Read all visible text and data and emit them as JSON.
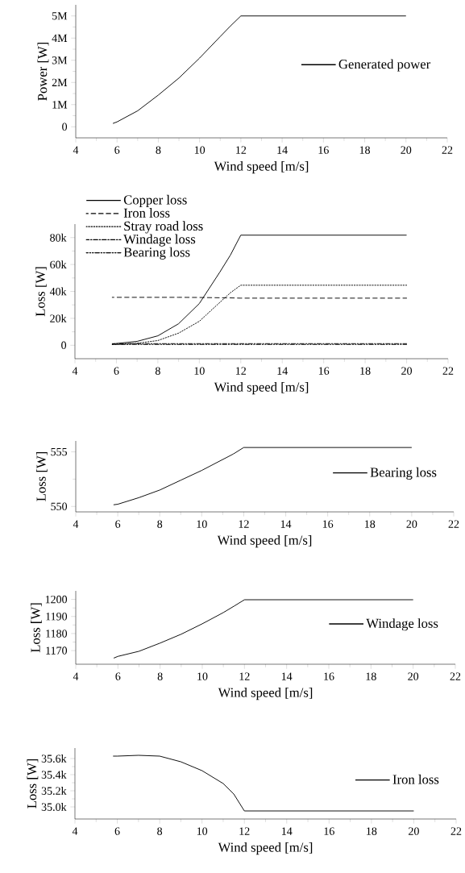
{
  "chart_data": [
    {
      "type": "line",
      "xlabel": "Wind speed [m/s]",
      "ylabel": "Power [W]",
      "legend": "right",
      "xlim": [
        4,
        22
      ],
      "ylim": [
        -500000,
        5500000
      ],
      "xticks": [
        4,
        6,
        8,
        10,
        12,
        14,
        16,
        18,
        20,
        22
      ],
      "yticks": [
        0,
        {
          "value": 1000000,
          "label": "1M"
        },
        {
          "value": 2000000,
          "label": "2M"
        },
        {
          "value": 3000000,
          "label": "3M"
        },
        {
          "value": 4000000,
          "label": "4M"
        },
        {
          "value": 5000000,
          "label": "5M"
        }
      ],
      "x": [
        5.8,
        6,
        7,
        8,
        9,
        10,
        11,
        11.5,
        12,
        20
      ],
      "series": [
        {
          "name": "Generated power",
          "color": "#000000",
          "line_style": "solid",
          "values": [
            150000,
            220000,
            720000,
            1430000,
            2200000,
            3100000,
            4070000,
            4550000,
            5000000,
            5000000
          ]
        }
      ]
    },
    {
      "type": "line",
      "xlabel": "Wind speed [m/s]",
      "ylabel": "Loss [W]",
      "legend": "top left",
      "xlim": [
        4,
        22
      ],
      "ylim": [
        -10000,
        90000
      ],
      "xticks": [
        4,
        6,
        8,
        10,
        12,
        14,
        16,
        18,
        20,
        22
      ],
      "yticks": [
        0,
        {
          "value": 20000,
          "label": "20k"
        },
        {
          "value": 40000,
          "label": "40k"
        },
        {
          "value": 60000,
          "label": "60k"
        },
        {
          "value": 80000,
          "label": "80k"
        }
      ],
      "x": [
        5.8,
        6,
        7,
        8,
        9,
        10,
        11,
        11.5,
        12,
        20
      ],
      "series": [
        {
          "name": "Copper loss",
          "color": "#000000",
          "line_style": "solid",
          "values": [
            1000,
            1300,
            2900,
            7000,
            16000,
            31000,
            54600,
            67000,
            81800,
            81800
          ]
        },
        {
          "name": "Iron loss",
          "color": "#000000",
          "line_style": "dashed",
          "values": [
            35600,
            35600,
            35600,
            35600,
            35600,
            35500,
            35300,
            35200,
            35000,
            35000
          ]
        },
        {
          "name": "Stray road loss",
          "color": "#000000",
          "line_style": "dotted",
          "values": [
            500,
            600,
            1500,
            3500,
            9000,
            17800,
            32000,
            39000,
            44600,
            44600
          ]
        },
        {
          "name": "Windage loss",
          "color": "#000000",
          "line_style": "dashdot",
          "values": [
            1200,
            1200,
            1200,
            1200,
            1200,
            1200,
            1200,
            1200,
            1200,
            1200
          ]
        },
        {
          "name": "Bearing loss",
          "color": "#000000",
          "line_style": "dashdotdot",
          "values": [
            600,
            600,
            600,
            600,
            600,
            600,
            600,
            600,
            600,
            600
          ]
        }
      ]
    },
    {
      "type": "line",
      "xlabel": "Wind speed [m/s]",
      "ylabel": "Loss [W]",
      "legend": "right",
      "xlim": [
        4,
        22
      ],
      "ylim": [
        549.5,
        556
      ],
      "xticks": [
        4,
        6,
        8,
        10,
        12,
        14,
        16,
        18,
        20,
        22
      ],
      "yticks": [
        550,
        555
      ],
      "x": [
        5.8,
        6,
        7,
        8,
        9,
        10,
        11,
        11.5,
        12,
        20
      ],
      "series": [
        {
          "name": "Bearing loss",
          "color": "#000000",
          "line_style": "solid",
          "values": [
            550.15,
            550.2,
            550.8,
            551.5,
            552.4,
            553.3,
            554.3,
            554.8,
            555.4,
            555.4
          ]
        }
      ]
    },
    {
      "type": "line",
      "xlabel": "Wind speed [m/s]",
      "ylabel": "Loss [W]",
      "legend": "right",
      "xlim": [
        4,
        22
      ],
      "ylim": [
        1162,
        1205
      ],
      "xticks": [
        4,
        6,
        8,
        10,
        12,
        14,
        16,
        18,
        20,
        22
      ],
      "yticks": [
        1170,
        1180,
        1190,
        1200
      ],
      "x": [
        5.8,
        6,
        7,
        8,
        9,
        10,
        11,
        11.5,
        12,
        20
      ],
      "series": [
        {
          "name": "Windage loss",
          "color": "#000000",
          "line_style": "solid",
          "values": [
            1165.6,
            1166.6,
            1169.6,
            1174.4,
            1179.6,
            1185.7,
            1192.3,
            1196,
            1199.8,
            1199.8
          ]
        }
      ]
    },
    {
      "type": "line",
      "xlabel": "Wind speed [m/s]",
      "ylabel": "Loss [W]",
      "legend": "right",
      "xlim": [
        4,
        22
      ],
      "ylim": [
        34850,
        35730
      ],
      "xticks": [
        4,
        6,
        8,
        10,
        12,
        14,
        16,
        18,
        20,
        22
      ],
      "yticks": [
        {
          "value": 35000,
          "label": "35.0k"
        },
        {
          "value": 35200,
          "label": "35.2k"
        },
        {
          "value": 35400,
          "label": "35.4k"
        },
        {
          "value": 35600,
          "label": "35.6k"
        }
      ],
      "x": [
        5.8,
        6,
        7,
        8,
        9,
        10,
        11,
        11.5,
        12,
        20
      ],
      "series": [
        {
          "name": "Iron loss",
          "color": "#000000",
          "line_style": "solid",
          "values": [
            35630,
            35630,
            35640,
            35630,
            35560,
            35450,
            35290,
            35160,
            34950,
            34950
          ]
        }
      ]
    }
  ]
}
